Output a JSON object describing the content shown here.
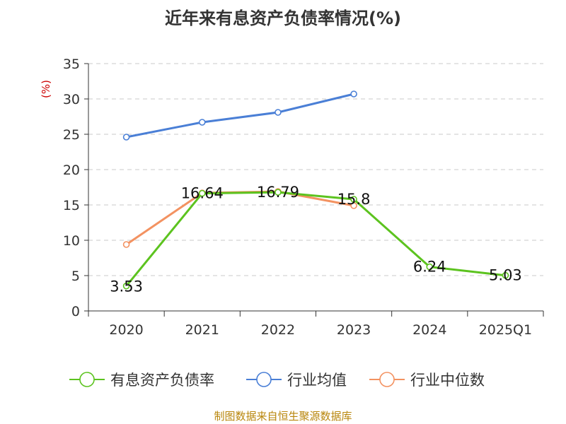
{
  "title": "近年来有息资产负债率情况(%)",
  "source": "制图数据来自恒生聚源数据库",
  "chart_data": {
    "type": "line",
    "title": "近年来有息资产负债率情况(%)",
    "ylabel": "(%)",
    "xlabel": "",
    "categories": [
      "2020",
      "2021",
      "2022",
      "2023",
      "2024",
      "2025Q1"
    ],
    "ylim": [
      0,
      35
    ],
    "yticks": [
      0,
      5,
      10,
      15,
      20,
      25,
      30,
      35
    ],
    "grid": true,
    "legend_position": "bottom",
    "series": [
      {
        "name": "有息资产负债率",
        "color": "#5cc31f",
        "values": [
          3.53,
          16.64,
          16.79,
          15.8,
          6.24,
          5.03
        ],
        "labels": [
          "3.53",
          "16.64",
          "16.79",
          "15.8",
          "6.24",
          "5.03"
        ]
      },
      {
        "name": "行业均值",
        "color": "#4a7fd6",
        "values": [
          24.6,
          26.7,
          28.1,
          30.7,
          null,
          null
        ],
        "labels": null
      },
      {
        "name": "行业中位数",
        "color": "#f39261",
        "values": [
          9.4,
          16.7,
          16.9,
          14.9,
          null,
          null
        ],
        "labels": null
      }
    ]
  }
}
